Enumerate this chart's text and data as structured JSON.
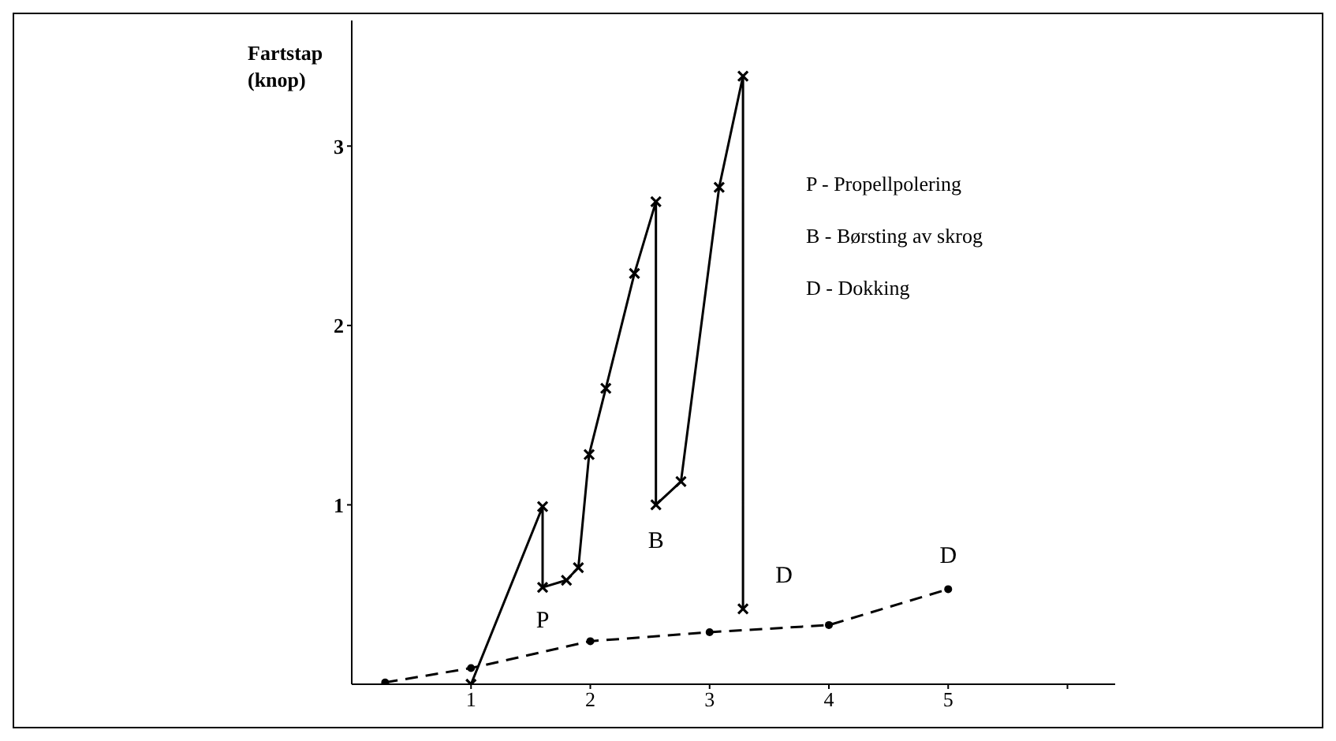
{
  "chart_data": {
    "type": "line",
    "ylabel": "Fartstap\n(knop)",
    "xlim": [
      0,
      6.4
    ],
    "xticks": [
      1,
      2,
      3,
      4,
      5,
      {
        "value": 6,
        "label": null
      }
    ],
    "ylim": [
      0,
      3.7
    ],
    "yticks": [
      1,
      2,
      3
    ],
    "grid": false,
    "series": [
      {
        "color": "#000000",
        "marker": "cross",
        "line_style": "solid",
        "x": [
          1,
          1.6,
          1.6,
          1.8,
          1.9,
          1.99,
          2.13,
          2.37,
          2.55,
          2.55,
          2.76,
          3.08,
          3.28,
          3.28
        ],
        "values": [
          0,
          0.99,
          0.54,
          0.58,
          0.65,
          1.28,
          1.65,
          2.29,
          2.69,
          1.0,
          1.13,
          2.77,
          3.39,
          0.42
        ]
      },
      {
        "color": "#000000",
        "marker": "circle",
        "line_style": "dashed",
        "x": [
          0.28,
          1,
          2,
          3,
          4,
          5
        ],
        "values": [
          0.01,
          0.09,
          0.24,
          0.29,
          0.33,
          0.53
        ]
      }
    ],
    "annotations": [
      {
        "text": "P",
        "x": 1.6,
        "y": 0.54
      },
      {
        "text": "B",
        "x": 2.55,
        "y": 1.0
      },
      {
        "text": "D",
        "x": 3.28,
        "y": 0.42
      },
      {
        "text": "D",
        "x": 5,
        "y": 0.53
      },
      "P - Propellpolering",
      "B - Børsting av skrog",
      "D - Dokking"
    ]
  }
}
